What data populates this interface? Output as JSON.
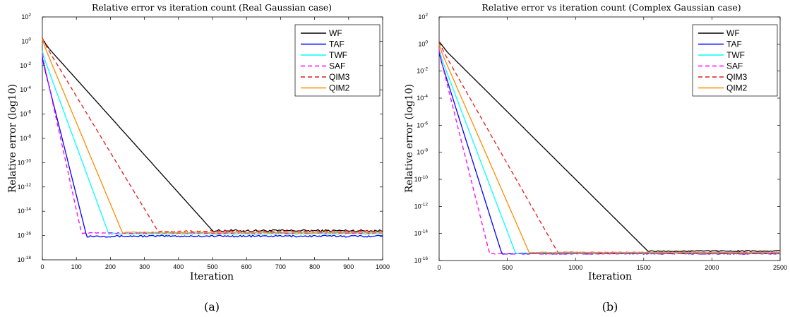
{
  "chart_data": [
    {
      "type": "line",
      "title": "Relative error vs iteration count (Real Gaussian case)",
      "xlabel": "Iteration",
      "ylabel": "Relative error (log10)",
      "caption": "(a)",
      "xlim": [
        0,
        1000
      ],
      "ylim_exp": [
        -18,
        2
      ],
      "yscale": "log",
      "xticks": [
        0,
        100,
        200,
        300,
        400,
        500,
        600,
        700,
        800,
        900,
        1000
      ],
      "yticks_exp": [
        -18,
        -16,
        -14,
        -12,
        -10,
        -8,
        -6,
        -4,
        -2,
        0,
        2
      ],
      "legend_position": "top-right",
      "series": [
        {
          "name": "WF",
          "color": "#000000",
          "dash": "solid",
          "start_log10": 0,
          "converge_x": 500,
          "floor_log10": -15.6,
          "noise": 0.09
        },
        {
          "name": "TAF",
          "color": "#0000ff",
          "dash": "solid",
          "start_log10": -1.5,
          "converge_x": 130,
          "floor_log10": -16.05,
          "noise": 0.08
        },
        {
          "name": "TWF",
          "color": "#00ffff",
          "dash": "solid",
          "start_log10": -1.0,
          "converge_x": 195,
          "floor_log10": -15.85,
          "noise": 0.05
        },
        {
          "name": "SAF",
          "color": "#ff00ff",
          "dash": "dashed",
          "start_log10": -1.2,
          "converge_x": 115,
          "floor_log10": -15.8,
          "noise": 0.05
        },
        {
          "name": "QIM3",
          "color": "#e31a1c",
          "dash": "dashed",
          "start_log10": 0.1,
          "converge_x": 340,
          "floor_log10": -15.65,
          "noise": 0.06
        },
        {
          "name": "QIM2",
          "color": "#ff8c00",
          "dash": "solid",
          "start_log10": 0.0,
          "converge_x": 235,
          "floor_log10": -15.75,
          "noise": 0.05
        }
      ]
    },
    {
      "type": "line",
      "title": "Relative error vs iteration count (Complex Gaussian case)",
      "xlabel": "Iteration",
      "ylabel": "Relative error (log10)",
      "caption": "(b)",
      "xlim": [
        0,
        2500
      ],
      "ylim_exp": [
        -16,
        2
      ],
      "yscale": "log",
      "xticks": [
        0,
        500,
        1000,
        1500,
        2000,
        2500
      ],
      "yticks_exp": [
        -16,
        -14,
        -12,
        -10,
        -8,
        -6,
        -4,
        -2,
        0,
        2
      ],
      "legend_position": "top-right",
      "series": [
        {
          "name": "WF",
          "color": "#000000",
          "dash": "solid",
          "start_log10": 0,
          "converge_x": 1530,
          "floor_log10": -15.3,
          "noise": 0.04
        },
        {
          "name": "TAF",
          "color": "#0000ff",
          "dash": "solid",
          "start_log10": -0.8,
          "converge_x": 460,
          "floor_log10": -15.5,
          "noise": 0.03
        },
        {
          "name": "TWF",
          "color": "#00ffff",
          "dash": "solid",
          "start_log10": -0.6,
          "converge_x": 560,
          "floor_log10": -15.45,
          "noise": 0.03
        },
        {
          "name": "SAF",
          "color": "#ff00ff",
          "dash": "dashed",
          "start_log10": -0.6,
          "converge_x": 370,
          "floor_log10": -15.5,
          "noise": 0.03
        },
        {
          "name": "QIM3",
          "color": "#e31a1c",
          "dash": "dashed",
          "start_log10": 0.0,
          "converge_x": 870,
          "floor_log10": -15.4,
          "noise": 0.03
        },
        {
          "name": "QIM2",
          "color": "#ff8c00",
          "dash": "solid",
          "start_log10": -0.2,
          "converge_x": 660,
          "floor_log10": -15.4,
          "noise": 0.03
        }
      ]
    }
  ]
}
